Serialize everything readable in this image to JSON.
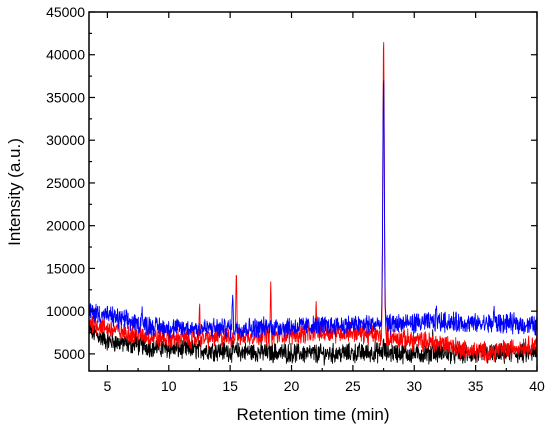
{
  "chart_data": {
    "type": "line",
    "title": "",
    "xlabel": "Retention time (min)",
    "ylabel": "Intensity (a.u.)",
    "xlim": [
      3.5,
      40
    ],
    "ylim": [
      3000,
      45000
    ],
    "xticks": [
      5,
      10,
      15,
      20,
      25,
      30,
      35,
      40
    ],
    "yticks": [
      5000,
      10000,
      15000,
      20000,
      25000,
      30000,
      35000,
      40000,
      45000
    ],
    "xtick_labels": [
      "5",
      "10",
      "15",
      "20",
      "25",
      "30",
      "35",
      "40"
    ],
    "ytick_labels": [
      "5000",
      "10000",
      "15000",
      "20000",
      "25000",
      "30000",
      "35000",
      "40000",
      "45000"
    ],
    "grid": false,
    "legend": "none",
    "series": [
      {
        "color": "#000000",
        "x": [
          3.5,
          5,
          7.5,
          10,
          12.5,
          15,
          17.5,
          20,
          22.5,
          25,
          27.5,
          30,
          32.5,
          35,
          37.5,
          40
        ],
        "values": [
          7800,
          6500,
          6000,
          5600,
          5500,
          5300,
          5200,
          5100,
          5000,
          5100,
          5200,
          5000,
          5100,
          4900,
          5000,
          5100
        ],
        "peaks": [
          [
            7.3,
            6800
          ],
          [
            27.5,
            6200
          ],
          [
            31.5,
            7200
          ]
        ]
      },
      {
        "color": "#ff0000",
        "x": [
          3.5,
          5,
          7.5,
          10,
          12.5,
          15,
          17.5,
          20,
          22.5,
          25,
          27.5,
          30,
          32.5,
          35,
          37.5,
          40
        ],
        "values": [
          8800,
          8000,
          7200,
          6800,
          6800,
          7000,
          7200,
          7300,
          7500,
          7600,
          7000,
          6600,
          6200,
          5200,
          5500,
          6200
        ],
        "peaks": [
          [
            15.5,
            15300
          ],
          [
            18.3,
            12500
          ],
          [
            12.5,
            10500
          ],
          [
            22.0,
            10500
          ],
          [
            27.5,
            41200
          ]
        ]
      },
      {
        "color": "#0000ff",
        "x": [
          3.5,
          5,
          7.5,
          10,
          12.5,
          15,
          17.5,
          20,
          22.5,
          25,
          27.5,
          30,
          32.5,
          35,
          37.5,
          40
        ],
        "values": [
          10000,
          9500,
          8500,
          8000,
          8000,
          8000,
          8100,
          8200,
          8300,
          8400,
          8500,
          8600,
          8800,
          8500,
          8600,
          8300
        ],
        "peaks": [
          [
            7.8,
            10800
          ],
          [
            15.2,
            12000
          ],
          [
            27.5,
            37800
          ],
          [
            31.8,
            10500
          ],
          [
            36.5,
            10200
          ]
        ]
      }
    ]
  }
}
